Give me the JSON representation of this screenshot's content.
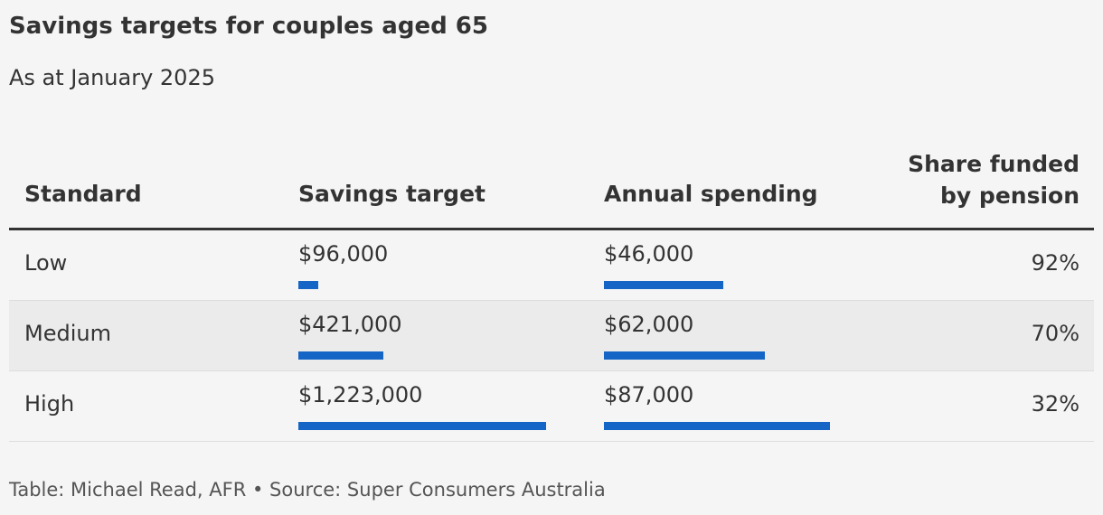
{
  "title": "Savings targets for couples aged 65",
  "subtitle": "As at January 2025",
  "table": {
    "columns": [
      "Standard",
      "Savings target",
      "Annual spending",
      "Share funded by pension"
    ],
    "rows": [
      [
        "Low",
        {
          "value": 96000,
          "label": "$96,000"
        },
        {
          "value": 46000,
          "label": "$46,000"
        },
        "92%"
      ],
      [
        "Medium",
        {
          "value": 421000,
          "label": "$421,000"
        },
        {
          "value": 62000,
          "label": "$62,000"
        },
        "70%"
      ],
      [
        "High",
        {
          "value": 1223000,
          "label": "$1,223,000"
        },
        {
          "value": 87000,
          "label": "$87,000"
        },
        "32%"
      ]
    ]
  },
  "footer": "Table: Michael Read, AFR • Source: Super Consumers Australia"
}
